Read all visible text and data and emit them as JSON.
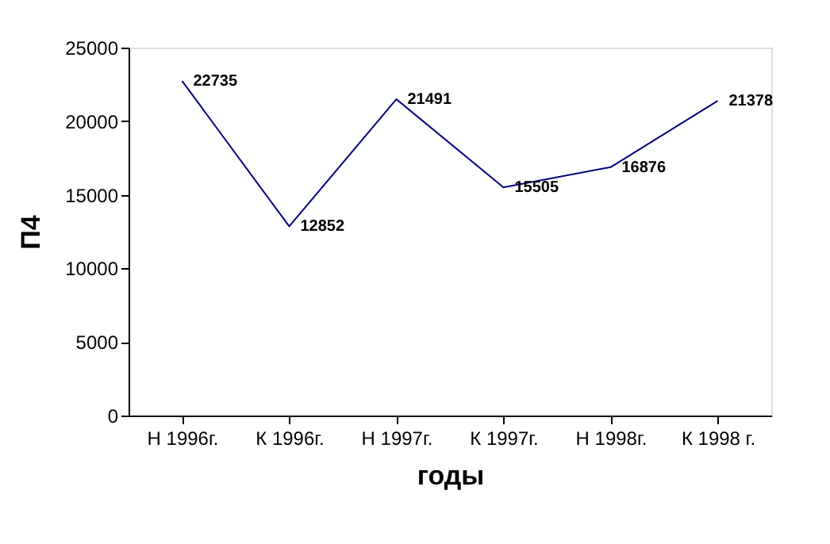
{
  "chart_data": {
    "type": "line",
    "categories": [
      "Н 1996г.",
      "К 1996г.",
      "Н 1997г.",
      "К 1997г.",
      "Н 1998г.",
      "К 1998 г."
    ],
    "series": [
      {
        "color": "#000080",
        "values": [
          22735,
          12852,
          21491,
          15505,
          16876,
          21378
        ]
      }
    ],
    "xlabel": "годы",
    "ylabel": "П4",
    "ylim": [
      0,
      25000
    ],
    "yticks": [
      0,
      5000,
      10000,
      15000,
      20000,
      25000
    ],
    "grid": false,
    "marker": "none",
    "line_style": "solid",
    "data_labels": true
  }
}
